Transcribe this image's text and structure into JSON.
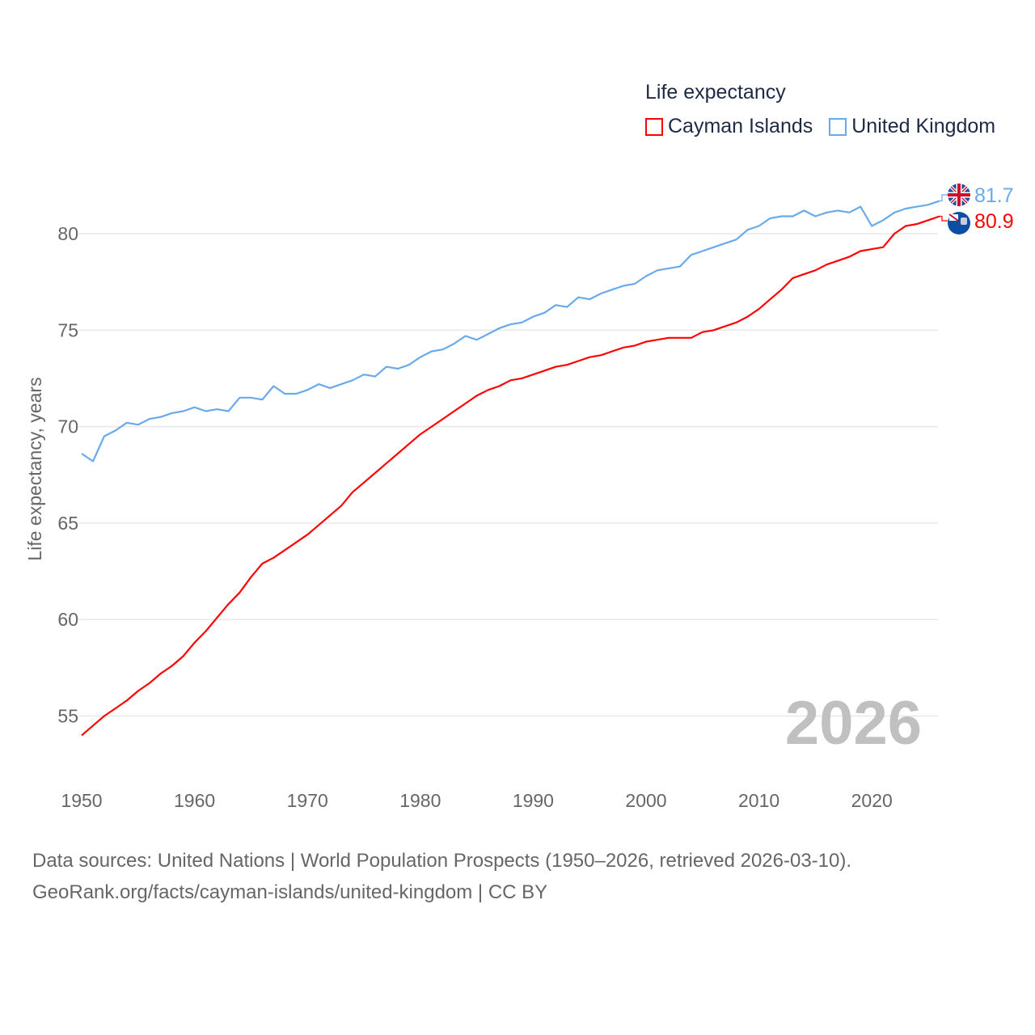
{
  "chart_data": {
    "type": "line",
    "legend_title": "Life expectancy",
    "ylabel": "Life expectancy, years",
    "xlabel": "",
    "ylim": [
      53.5,
      83
    ],
    "xlim": [
      1950,
      2026
    ],
    "yticks": [
      "55",
      "60",
      "65",
      "70",
      "75",
      "80"
    ],
    "ytick_values": [
      55,
      60,
      65,
      70,
      75,
      80
    ],
    "xticks": [
      "1950",
      "1960",
      "1970",
      "1980",
      "1990",
      "2000",
      "2010",
      "2020"
    ],
    "xtick_values": [
      1950,
      1960,
      1970,
      1980,
      1990,
      2000,
      2010,
      2020
    ],
    "grid": true,
    "legend_placement": "top-right",
    "year_watermark": "2026",
    "x_start": 1950,
    "series": [
      {
        "name": "Cayman Islands",
        "color": "#ff0000",
        "end_label": "80.9",
        "flag": "cayman-flag",
        "values": [
          54.0,
          54.5,
          55.0,
          55.4,
          55.8,
          56.3,
          56.7,
          57.2,
          57.6,
          58.1,
          58.8,
          59.4,
          60.1,
          60.8,
          61.4,
          62.2,
          62.9,
          63.2,
          63.6,
          64.0,
          64.4,
          64.9,
          65.4,
          65.9,
          66.6,
          67.1,
          67.6,
          68.1,
          68.6,
          69.1,
          69.6,
          70.0,
          70.4,
          70.8,
          71.2,
          71.6,
          71.9,
          72.1,
          72.4,
          72.5,
          72.7,
          72.9,
          73.1,
          73.2,
          73.4,
          73.6,
          73.7,
          73.9,
          74.1,
          74.2,
          74.4,
          74.5,
          74.6,
          74.6,
          74.6,
          74.9,
          75.0,
          75.2,
          75.4,
          75.7,
          76.1,
          76.6,
          77.1,
          77.7,
          77.9,
          78.1,
          78.4,
          78.6,
          78.8,
          79.1,
          79.2,
          79.3,
          80.0,
          80.4,
          80.5,
          80.7,
          80.9
        ]
      },
      {
        "name": "United Kingdom",
        "color": "#6aaaea",
        "end_label": "81.7",
        "flag": "uk-flag",
        "values": [
          68.6,
          68.2,
          69.5,
          69.8,
          70.2,
          70.1,
          70.4,
          70.5,
          70.7,
          70.8,
          71.0,
          70.8,
          70.9,
          70.8,
          71.5,
          71.5,
          71.4,
          72.1,
          71.7,
          71.7,
          71.9,
          72.2,
          72.0,
          72.2,
          72.4,
          72.7,
          72.6,
          73.1,
          73.0,
          73.2,
          73.6,
          73.9,
          74.0,
          74.3,
          74.7,
          74.5,
          74.8,
          75.1,
          75.3,
          75.4,
          75.7,
          75.9,
          76.3,
          76.2,
          76.7,
          76.6,
          76.9,
          77.1,
          77.3,
          77.4,
          77.8,
          78.1,
          78.2,
          78.3,
          78.9,
          79.1,
          79.3,
          79.5,
          79.7,
          80.2,
          80.4,
          80.8,
          80.9,
          80.9,
          81.2,
          80.9,
          81.1,
          81.2,
          81.1,
          81.4,
          80.4,
          80.7,
          81.1,
          81.3,
          81.4,
          81.5,
          81.7
        ]
      }
    ]
  },
  "footer": {
    "line1": "Data sources: United Nations | World Population Prospects (1950–2026, retrieved 2026-03-10).",
    "line2": "GeoRank.org/facts/cayman-islands/united-kingdom | CC BY"
  }
}
